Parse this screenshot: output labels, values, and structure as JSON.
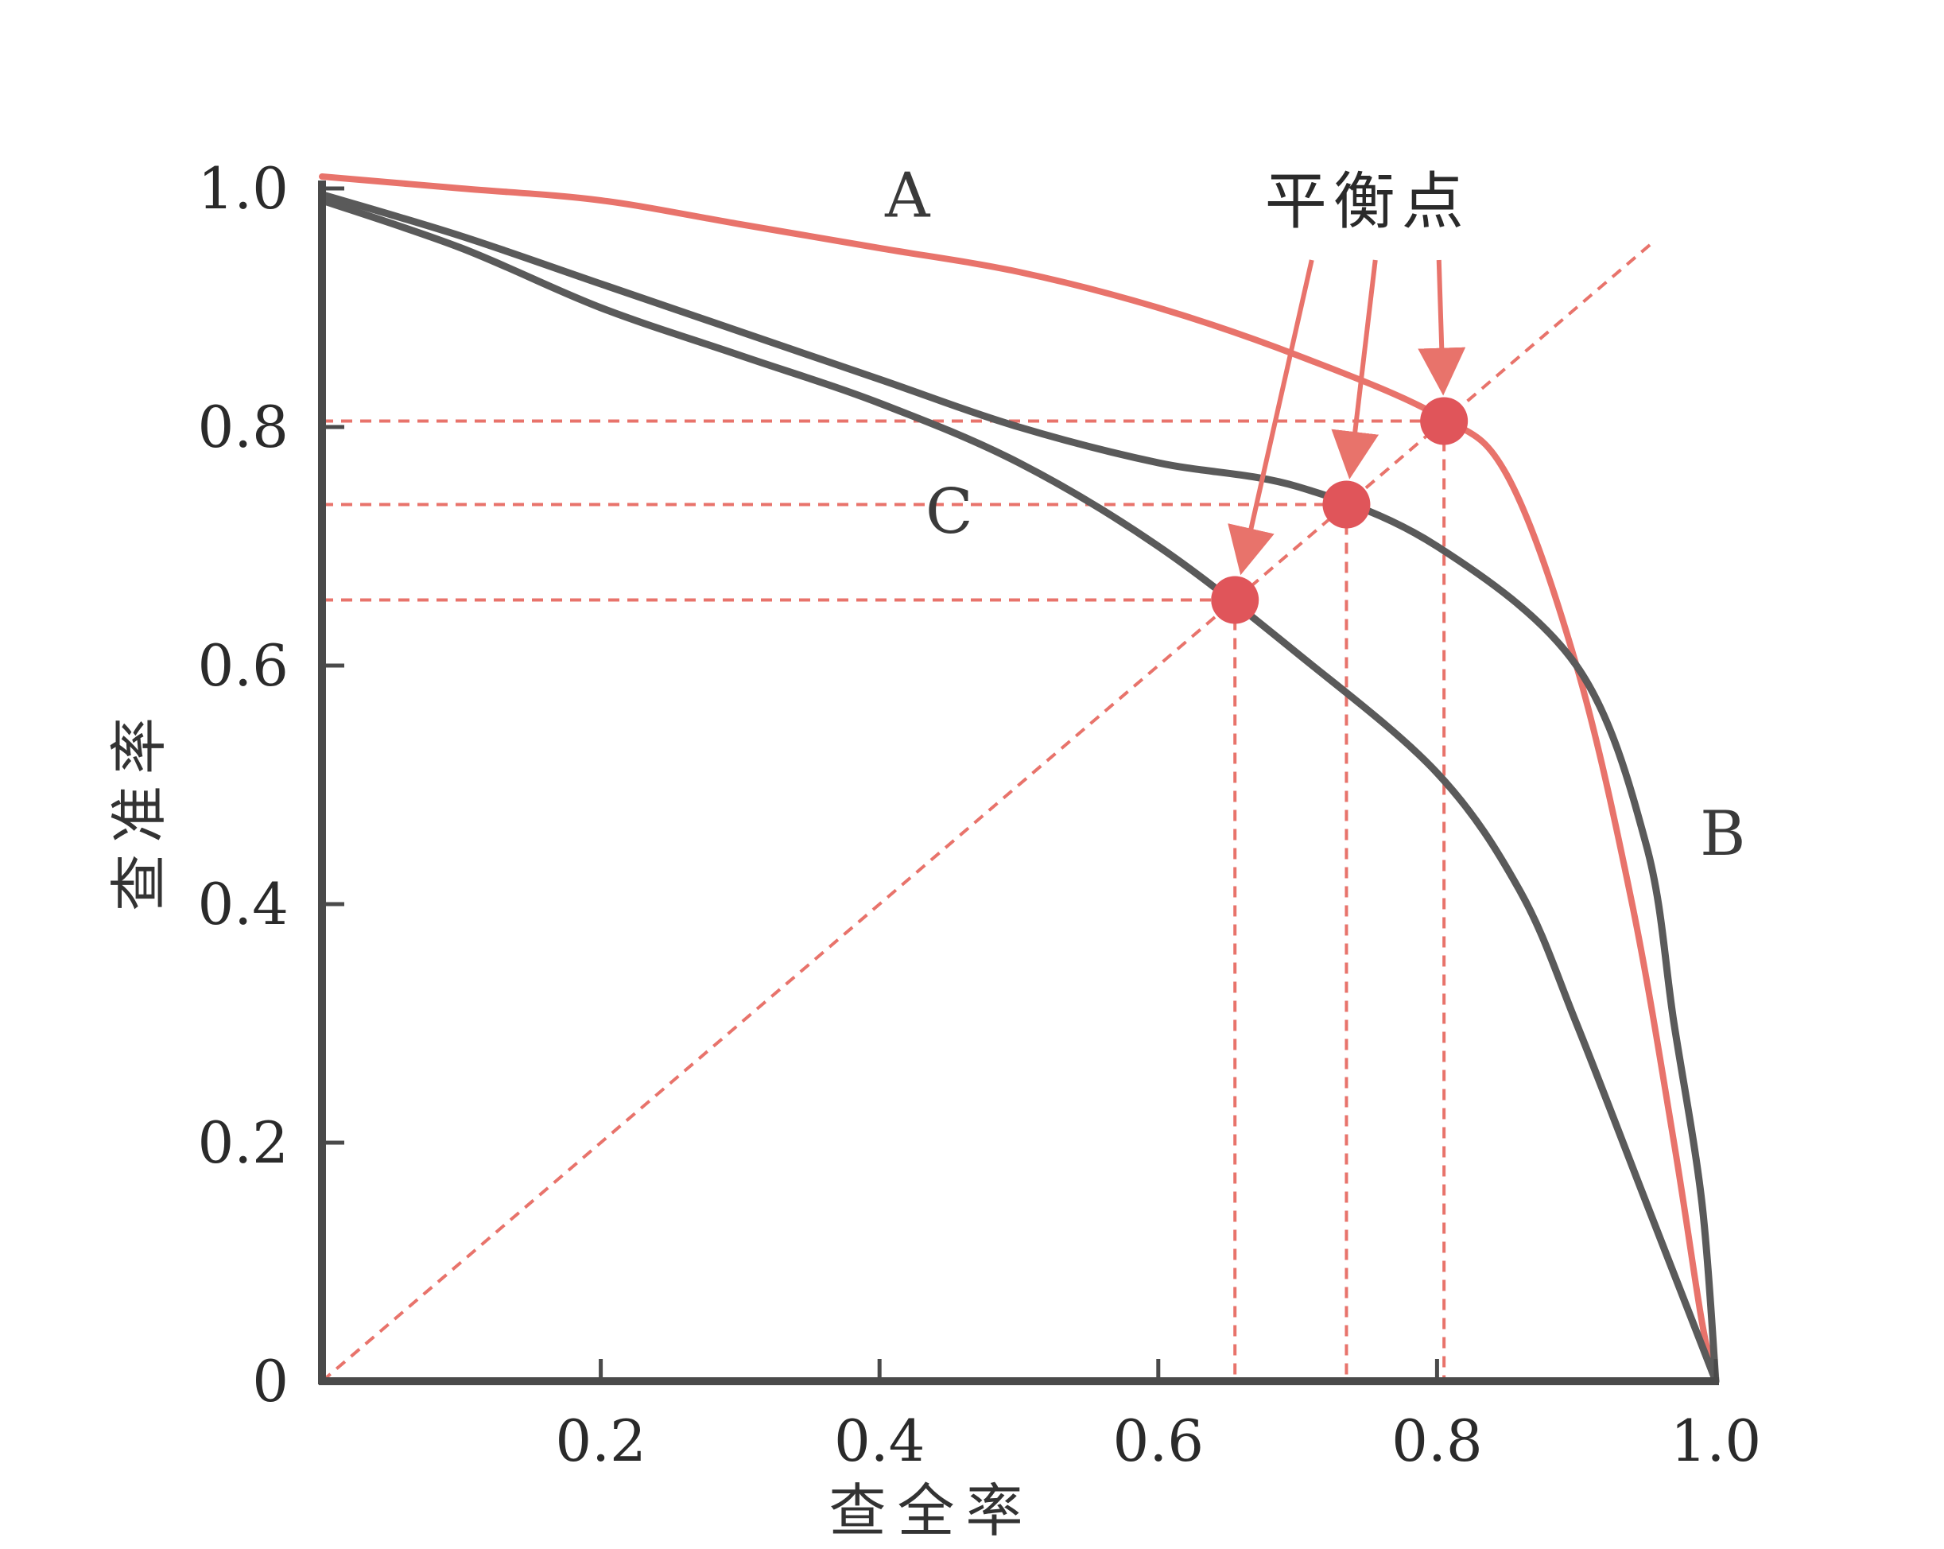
{
  "chart_data": {
    "type": "line",
    "title": "",
    "xlabel": "查全率",
    "ylabel": "查准率",
    "xlim": [
      0,
      1.0
    ],
    "ylim": [
      0,
      1.0
    ],
    "x_ticks": [
      {
        "value": 0.2,
        "label": "0.2"
      },
      {
        "value": 0.4,
        "label": "0.4"
      },
      {
        "value": 0.6,
        "label": "0.6"
      },
      {
        "value": 0.8,
        "label": "0.8"
      },
      {
        "value": 1.0,
        "label": "1.0"
      }
    ],
    "y_ticks": [
      {
        "value": 0,
        "label": "0"
      },
      {
        "value": 0.2,
        "label": "0.2"
      },
      {
        "value": 0.4,
        "label": "0.4"
      },
      {
        "value": 0.6,
        "label": "0.6"
      },
      {
        "value": 0.8,
        "label": "0.8"
      },
      {
        "value": 1.0,
        "label": "1.0"
      }
    ],
    "grid": false,
    "legend": "none",
    "series": [
      {
        "name": "A",
        "color": "#e8736b",
        "points": [
          [
            0,
            1.01
          ],
          [
            0.1,
            1.0
          ],
          [
            0.2,
            0.99
          ],
          [
            0.3,
            0.97
          ],
          [
            0.4,
            0.95
          ],
          [
            0.5,
            0.93
          ],
          [
            0.6,
            0.9
          ],
          [
            0.7,
            0.86
          ],
          [
            0.8,
            0.81
          ],
          [
            0.85,
            0.76
          ],
          [
            0.9,
            0.6
          ],
          [
            0.94,
            0.4
          ],
          [
            0.97,
            0.2
          ],
          [
            0.99,
            0.05
          ],
          [
            1.0,
            0.0
          ]
        ],
        "label_at": [
          0.42,
          0.995
        ],
        "break_even": 0.805
      },
      {
        "name": "B",
        "color": "#5a5a5a",
        "points": [
          [
            0,
            0.995
          ],
          [
            0.1,
            0.96
          ],
          [
            0.2,
            0.92
          ],
          [
            0.3,
            0.88
          ],
          [
            0.4,
            0.84
          ],
          [
            0.5,
            0.8
          ],
          [
            0.6,
            0.77
          ],
          [
            0.7,
            0.75
          ],
          [
            0.8,
            0.7
          ],
          [
            0.9,
            0.6
          ],
          [
            0.95,
            0.45
          ],
          [
            0.97,
            0.3
          ],
          [
            0.99,
            0.15
          ],
          [
            1.0,
            0.0
          ]
        ],
        "label_at": [
          1.005,
          0.46
        ],
        "break_even": 0.735
      },
      {
        "name": "C",
        "color": "#5a5a5a",
        "points": [
          [
            0,
            0.99
          ],
          [
            0.1,
            0.95
          ],
          [
            0.2,
            0.9
          ],
          [
            0.3,
            0.86
          ],
          [
            0.4,
            0.82
          ],
          [
            0.5,
            0.77
          ],
          [
            0.6,
            0.7
          ],
          [
            0.7,
            0.61
          ],
          [
            0.8,
            0.51
          ],
          [
            0.86,
            0.41
          ],
          [
            0.9,
            0.3
          ],
          [
            0.95,
            0.15
          ],
          [
            1.0,
            0.0
          ]
        ],
        "label_at": [
          0.45,
          0.73
        ],
        "break_even": 0.655
      }
    ],
    "reference_line": {
      "from": [
        0,
        0
      ],
      "to": [
        0.955,
        0.955
      ],
      "color": "#e8736b",
      "style": "dashed"
    },
    "annotations": [
      {
        "text": "平衡点",
        "at": [
          0.75,
          0.99
        ],
        "arrows_to": [
          0.655,
          0.735,
          0.805
        ]
      }
    ]
  }
}
